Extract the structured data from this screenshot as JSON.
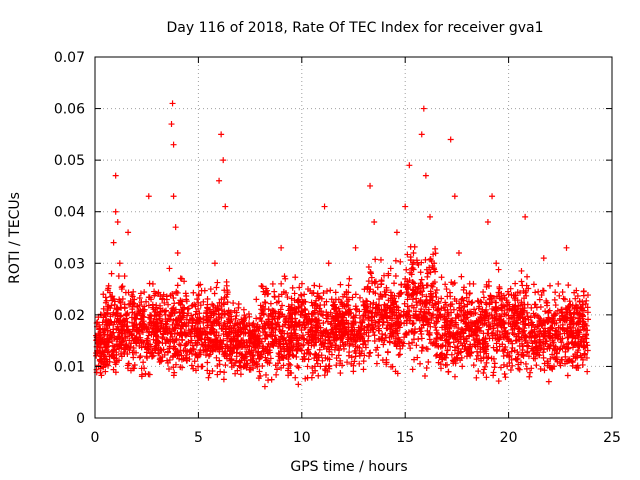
{
  "chart_data": {
    "type": "scatter",
    "title": "Day 116 of 2018, Rate Of TEC Index for receiver gva1",
    "xlabel": "GPS time / hours",
    "ylabel": "ROTI / TECUs",
    "xlim": [
      0,
      25
    ],
    "ylim": [
      0,
      0.07
    ],
    "xticks": [
      0,
      5,
      10,
      15,
      20,
      25
    ],
    "yticks": [
      0,
      0.01,
      0.02,
      0.03,
      0.04,
      0.05,
      0.06,
      0.07
    ],
    "xtick_labels": [
      "0",
      "5",
      "10",
      "15",
      "20",
      "25"
    ],
    "ytick_labels": [
      "0",
      "0.01",
      "0.02",
      "0.03",
      "0.04",
      "0.05",
      "0.06",
      "0.07"
    ],
    "grid": true,
    "marker": "plus",
    "color": "#ff0000",
    "note_density": "dense cloud of points between roughly 0.008 and 0.03 ROTI over 0-24 h",
    "points": [
      [
        0.1,
        0.013
      ],
      [
        0.2,
        0.016
      ],
      [
        0.3,
        0.02
      ],
      [
        0.4,
        0.024
      ],
      [
        0.5,
        0.009
      ],
      [
        0.6,
        0.011
      ],
      [
        0.7,
        0.018
      ],
      [
        0.8,
        0.028
      ],
      [
        0.9,
        0.034
      ],
      [
        1.0,
        0.04
      ],
      [
        1.0,
        0.047
      ],
      [
        1.1,
        0.038
      ],
      [
        1.2,
        0.03
      ],
      [
        1.3,
        0.025
      ],
      [
        1.4,
        0.019
      ],
      [
        1.5,
        0.014
      ],
      [
        1.6,
        0.036
      ],
      [
        1.8,
        0.022
      ],
      [
        2.0,
        0.017
      ],
      [
        2.2,
        0.012
      ],
      [
        2.4,
        0.021
      ],
      [
        2.6,
        0.043
      ],
      [
        2.8,
        0.026
      ],
      [
        3.0,
        0.015
      ],
      [
        3.2,
        0.011
      ],
      [
        3.4,
        0.02
      ],
      [
        3.6,
        0.029
      ],
      [
        3.7,
        0.057
      ],
      [
        3.75,
        0.061
      ],
      [
        3.8,
        0.053
      ],
      [
        3.8,
        0.043
      ],
      [
        3.9,
        0.037
      ],
      [
        4.0,
        0.032
      ],
      [
        4.2,
        0.027
      ],
      [
        4.4,
        0.018
      ],
      [
        4.6,
        0.013
      ],
      [
        4.8,
        0.022
      ],
      [
        5.0,
        0.016
      ],
      [
        5.2,
        0.01
      ],
      [
        5.4,
        0.019
      ],
      [
        5.6,
        0.025
      ],
      [
        5.8,
        0.03
      ],
      [
        6.0,
        0.046
      ],
      [
        6.1,
        0.055
      ],
      [
        6.2,
        0.05
      ],
      [
        6.3,
        0.041
      ],
      [
        6.4,
        0.024
      ],
      [
        6.6,
        0.019
      ],
      [
        6.8,
        0.014
      ],
      [
        7.0,
        0.01
      ],
      [
        7.2,
        0.021
      ],
      [
        7.5,
        0.017
      ],
      [
        7.8,
        0.023
      ],
      [
        8.0,
        0.012
      ],
      [
        8.3,
        0.016
      ],
      [
        8.6,
        0.026
      ],
      [
        9.0,
        0.033
      ],
      [
        9.2,
        0.027
      ],
      [
        9.5,
        0.018
      ],
      [
        9.8,
        0.013
      ],
      [
        10.0,
        0.02
      ],
      [
        10.3,
        0.025
      ],
      [
        10.6,
        0.014
      ],
      [
        10.9,
        0.01
      ],
      [
        11.1,
        0.041
      ],
      [
        11.3,
        0.03
      ],
      [
        11.6,
        0.022
      ],
      [
        12.0,
        0.016
      ],
      [
        12.3,
        0.027
      ],
      [
        12.6,
        0.033
      ],
      [
        13.0,
        0.019
      ],
      [
        13.3,
        0.045
      ],
      [
        13.5,
        0.038
      ],
      [
        13.8,
        0.024
      ],
      [
        14.0,
        0.015
      ],
      [
        14.3,
        0.029
      ],
      [
        14.6,
        0.036
      ],
      [
        14.8,
        0.02
      ],
      [
        15.0,
        0.041
      ],
      [
        15.2,
        0.049
      ],
      [
        15.4,
        0.032
      ],
      [
        15.6,
        0.025
      ],
      [
        15.8,
        0.055
      ],
      [
        15.9,
        0.06
      ],
      [
        16.0,
        0.047
      ],
      [
        16.2,
        0.039
      ],
      [
        16.4,
        0.03
      ],
      [
        16.6,
        0.021
      ],
      [
        16.8,
        0.016
      ],
      [
        17.0,
        0.025
      ],
      [
        17.2,
        0.054
      ],
      [
        17.4,
        0.043
      ],
      [
        17.6,
        0.032
      ],
      [
        17.8,
        0.02
      ],
      [
        18.0,
        0.013
      ],
      [
        18.3,
        0.026
      ],
      [
        18.6,
        0.019
      ],
      [
        19.0,
        0.038
      ],
      [
        19.2,
        0.043
      ],
      [
        19.4,
        0.03
      ],
      [
        19.6,
        0.018
      ],
      [
        20.0,
        0.024
      ],
      [
        20.4,
        0.015
      ],
      [
        20.8,
        0.039
      ],
      [
        21.0,
        0.008
      ],
      [
        21.3,
        0.022
      ],
      [
        21.7,
        0.031
      ],
      [
        22.0,
        0.016
      ],
      [
        22.4,
        0.026
      ],
      [
        22.8,
        0.033
      ],
      [
        23.0,
        0.019
      ],
      [
        23.3,
        0.012
      ],
      [
        23.6,
        0.022
      ],
      [
        23.8,
        0.009
      ]
    ]
  }
}
